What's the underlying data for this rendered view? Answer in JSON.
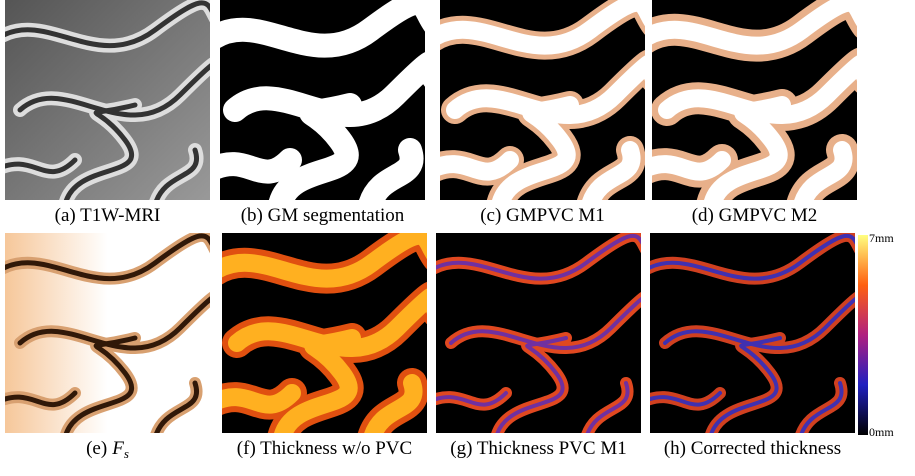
{
  "panels": [
    {
      "caption": "(a) T1W-MRI"
    },
    {
      "caption": "(b) GM segmentation"
    },
    {
      "caption": "(c) GMPVC M1"
    },
    {
      "caption": "(d) GMPVC M2"
    },
    {
      "label": "(e)",
      "symbol": "F",
      "subscript": "s"
    },
    {
      "caption": "(f) Thickness w/o PVC"
    },
    {
      "caption": "(g) Thickness PVC M1"
    },
    {
      "caption": "(h) Corrected thickness"
    }
  ],
  "colorbar": {
    "top": "7mm",
    "bottom": "0mm"
  }
}
